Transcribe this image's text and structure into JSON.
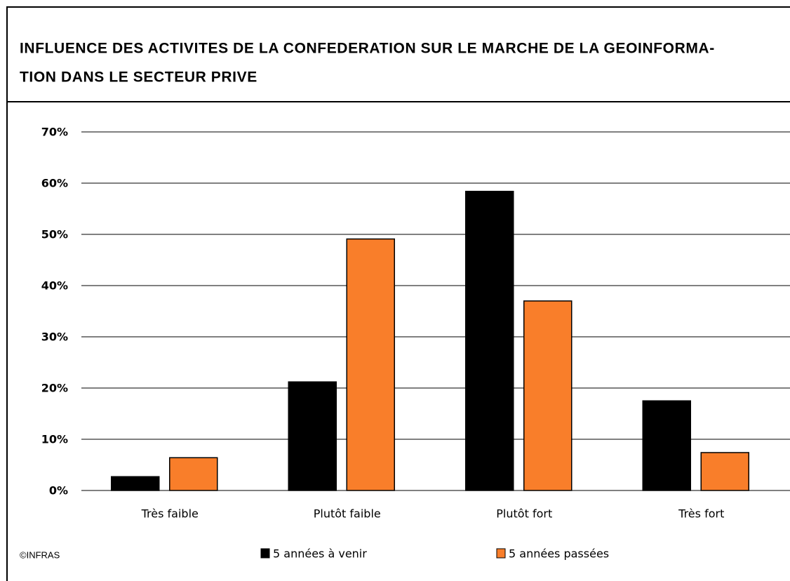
{
  "chart_data": {
    "type": "bar",
    "title": [
      "INFLUENCE DES ACTIVITES DE LA CONFEDERATION SUR LE MARCHE DE LA GEOINFORMA-",
      "TION DANS LE SECTEUR PRIVE"
    ],
    "source": "©INFRAS",
    "categories": [
      "Très faible",
      "Plutôt faible",
      "Plutôt fort",
      "Très fort"
    ],
    "series": [
      {
        "name": "5 années à venir",
        "color": "#000000",
        "values": [
          2.7,
          21.2,
          58.4,
          17.5
        ]
      },
      {
        "name": "5 années passées",
        "color": "#f97e2a",
        "values": [
          6.4,
          49.1,
          37.0,
          7.4
        ]
      }
    ],
    "ylim": [
      0,
      70
    ],
    "yticks": [
      {
        "value": 0,
        "label": "0%"
      },
      {
        "value": 10,
        "label": "10%"
      },
      {
        "value": 20,
        "label": "20%"
      },
      {
        "value": 30,
        "label": "30%"
      },
      {
        "value": 40,
        "label": "40%"
      },
      {
        "value": 50,
        "label": "50%"
      },
      {
        "value": 60,
        "label": "60%"
      },
      {
        "value": 70,
        "label": "70%"
      }
    ],
    "grid": true
  }
}
